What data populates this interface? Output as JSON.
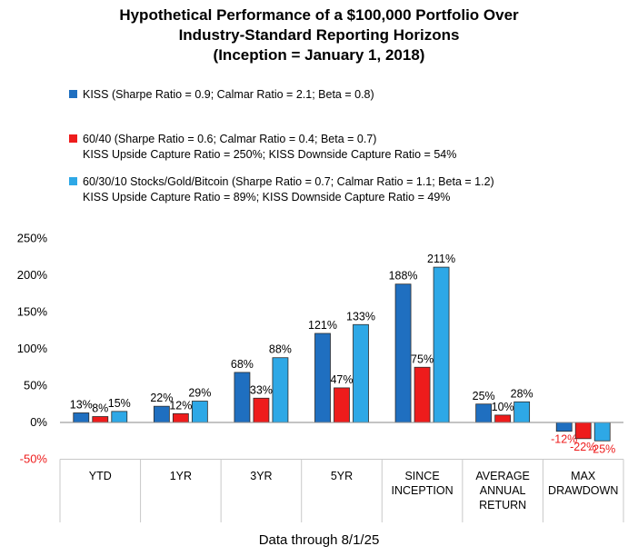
{
  "title_lines": [
    "Hypothetical Performance of a $100,000 Portfolio Over",
    "Industry-Standard Reporting Horizons",
    "(Inception = January 1, 2018)"
  ],
  "legend": [
    {
      "label": "KISS (Sharpe Ratio = 0.9; Calmar Ratio = 2.1; Beta = 0.8)",
      "sub": "",
      "color": "#1f6fc0"
    },
    {
      "label": "60/40 (Sharpe Ratio = 0.6; Calmar Ratio = 0.4; Beta = 0.7)",
      "sub": "KISS Upside Capture Ratio = 250%; KISS Downside Capture Ratio = 54%",
      "color": "#ee1c1c"
    },
    {
      "label": "60/30/10 Stocks/Gold/Bitcoin (Sharpe Ratio = 0.7; Calmar Ratio = 1.1; Beta = 1.2)",
      "sub": "KISS Upside Capture Ratio = 89%; KISS Downside Capture Ratio = 49%",
      "color": "#2ea8e6"
    }
  ],
  "footer": "Data through 8/1/25",
  "chart_data": {
    "type": "bar",
    "categories": [
      [
        "YTD"
      ],
      [
        "1YR"
      ],
      [
        "3YR"
      ],
      [
        "5YR"
      ],
      [
        "SINCE",
        "INCEPTION"
      ],
      [
        "AVERAGE",
        "ANNUAL",
        "RETURN"
      ],
      [
        "MAX",
        "DRAWDOWN"
      ]
    ],
    "series": [
      {
        "name": "KISS",
        "color": "#1f6fc0",
        "values": [
          13,
          22,
          68,
          121,
          188,
          25,
          -12
        ],
        "labels": [
          "13%",
          "22%",
          "68%",
          "121%",
          "188%",
          "25%",
          "-12%"
        ]
      },
      {
        "name": "60/40",
        "color": "#ee1c1c",
        "values": [
          8,
          12,
          33,
          47,
          75,
          10,
          -22
        ],
        "labels": [
          "8%",
          "12%",
          "33%",
          "47%",
          "75%",
          "10%",
          "-22%"
        ]
      },
      {
        "name": "60/30/10 Stocks/Gold/Bitcoin",
        "color": "#2ea8e6",
        "values": [
          15,
          29,
          88,
          133,
          211,
          28,
          -25
        ],
        "labels": [
          "15%",
          "29%",
          "88%",
          "133%",
          "211%",
          "28%",
          "-25%"
        ]
      }
    ],
    "yticks": [
      "250%",
      "200%",
      "150%",
      "100%",
      "50%",
      "0%",
      "-50%"
    ],
    "ytick_values": [
      250,
      200,
      150,
      100,
      50,
      0,
      -50
    ],
    "ylim": [
      -50,
      250
    ],
    "negative_tick_color": "#ee1c1c",
    "negative_label_color": "#ee1c1c",
    "grid": false,
    "legend_position": "top-left"
  }
}
